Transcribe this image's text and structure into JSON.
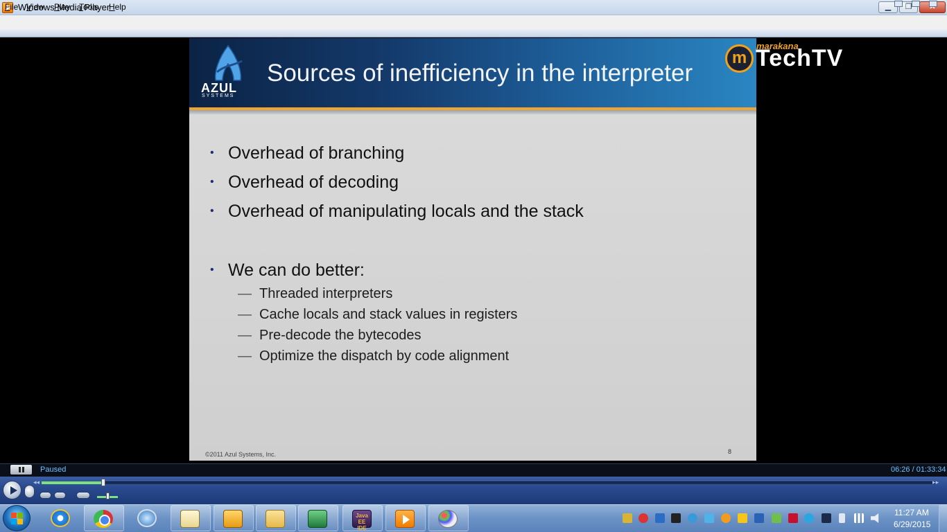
{
  "window": {
    "title": "Windows Media Player"
  },
  "menu": [
    "File",
    "View",
    "Play",
    "Tools",
    "Help"
  ],
  "slide": {
    "brand": "AZUL",
    "brand_sub": "SYSTEMS",
    "title": "Sources of inefficiency in the interpreter",
    "overlay_small": "marakana",
    "overlay_big": "TechTV",
    "overlay_logo_letter": "m",
    "bullets": [
      "Overhead of branching",
      "Overhead of decoding",
      "Overhead of manipulating locals and the stack",
      "We can do better:"
    ],
    "sub_bullets": [
      "Threaded interpreters",
      "Cache locals and stack values in registers",
      "Pre-decode the bytecodes",
      "Optimize the dispatch by code alignment"
    ],
    "footer": "©2011 Azul Systems, Inc.",
    "page_num": "8",
    "bullet_glyph": "•",
    "dash_glyph": "—"
  },
  "player": {
    "status": "Paused",
    "time": "06:26 / 01:33:34",
    "seek_progress": 0.069,
    "volume": 0.5
  },
  "taskbar": {
    "pinned": [
      "ie-icon",
      "chrome-icon",
      "safari-icon",
      "notepad-icon",
      "outlook-icon",
      "explorer-icon",
      "excel-icon",
      "java-ee-ide-icon",
      "windows-media-player-icon",
      "paint-icon"
    ],
    "java_ee_label": "Java EE IDE",
    "clock_time": "11:27 AM",
    "clock_date": "6/29/2015"
  }
}
